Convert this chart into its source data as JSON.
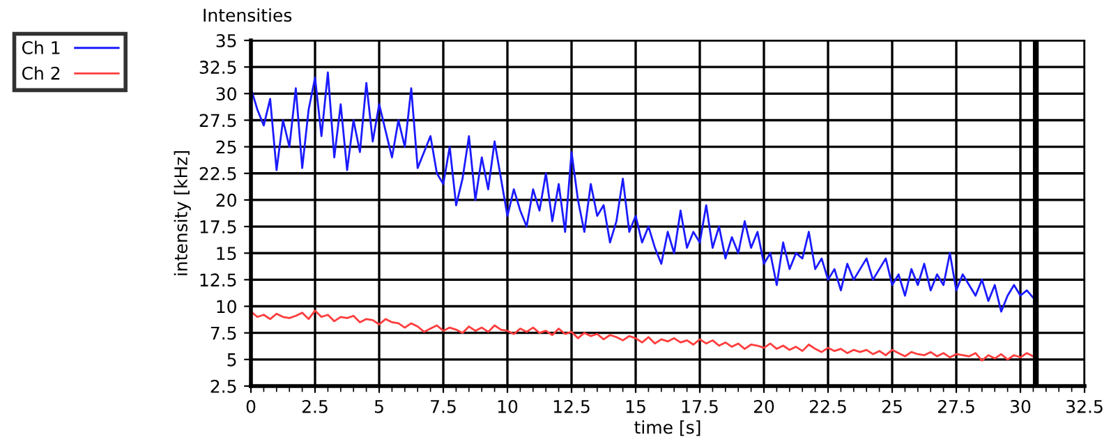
{
  "chart_data": {
    "type": "line",
    "title": "Intensities",
    "xlabel": "time [s]",
    "ylabel": "intensity [kHz]",
    "x": [
      0,
      0.25,
      0.5,
      0.75,
      1,
      1.25,
      1.5,
      1.75,
      2,
      2.25,
      2.5,
      2.75,
      3,
      3.25,
      3.5,
      3.75,
      4,
      4.25,
      4.5,
      4.75,
      5,
      5.25,
      5.5,
      5.75,
      6,
      6.25,
      6.5,
      6.75,
      7,
      7.25,
      7.5,
      7.75,
      8,
      8.25,
      8.5,
      8.75,
      9,
      9.25,
      9.5,
      9.75,
      10,
      10.25,
      10.5,
      10.75,
      11,
      11.25,
      11.5,
      11.75,
      12,
      12.25,
      12.5,
      12.75,
      13,
      13.25,
      13.5,
      13.75,
      14,
      14.25,
      14.5,
      14.75,
      15,
      15.25,
      15.5,
      15.75,
      16,
      16.25,
      16.5,
      16.75,
      17,
      17.25,
      17.5,
      17.75,
      18,
      18.25,
      18.5,
      18.75,
      19,
      19.25,
      19.5,
      19.75,
      20,
      20.25,
      20.5,
      20.75,
      21,
      21.25,
      21.5,
      21.75,
      22,
      22.25,
      22.5,
      22.75,
      23,
      23.25,
      23.5,
      23.75,
      24,
      24.25,
      24.5,
      24.75,
      25,
      25.25,
      25.5,
      25.75,
      26,
      26.25,
      26.5,
      26.75,
      27,
      27.25,
      27.5,
      27.75,
      28,
      28.25,
      28.5,
      28.75,
      29,
      29.25,
      29.5,
      29.75,
      30,
      30.25,
      30.5
    ],
    "series": [
      {
        "name": "Ch 1",
        "color": "#1a1aff",
        "values": [
          30.5,
          28.5,
          27,
          29.5,
          22.8,
          27.5,
          25,
          30.5,
          23,
          28.5,
          31.5,
          26,
          32,
          24,
          29,
          22.8,
          27.5,
          24.5,
          31,
          25.5,
          29,
          26.5,
          24,
          27.5,
          25,
          30.5,
          23,
          24.5,
          26,
          22.5,
          21.5,
          25,
          19.5,
          22,
          26,
          20,
          24,
          21,
          25.5,
          22,
          18.5,
          21,
          19,
          17.5,
          21,
          19,
          22.5,
          18,
          21.5,
          17,
          24.5,
          20,
          17,
          21.5,
          18.5,
          19.5,
          16,
          18,
          22,
          17,
          18.5,
          16,
          17.5,
          15.5,
          14,
          17,
          15,
          19,
          15.5,
          17,
          16,
          19.5,
          15.5,
          17.5,
          14.5,
          16.5,
          15,
          18,
          15.5,
          17,
          14,
          15,
          12,
          16,
          13.5,
          15,
          14.5,
          17,
          13.5,
          14.5,
          12.5,
          13.5,
          11.5,
          14,
          12.5,
          13.5,
          14.5,
          12.5,
          13.5,
          14.5,
          12,
          13,
          11,
          13.5,
          12,
          14,
          11.5,
          13,
          12,
          15,
          11.5,
          13,
          12,
          11,
          12.5,
          10.5,
          12,
          9.5,
          11,
          12,
          11,
          11.5,
          10.8
        ]
      },
      {
        "name": "Ch 2",
        "color": "#ff3c3c",
        "values": [
          9.5,
          9.0,
          9.2,
          8.8,
          9.3,
          9.0,
          8.9,
          9.1,
          9.4,
          8.8,
          9.6,
          9.0,
          9.2,
          8.6,
          9.0,
          8.9,
          9.1,
          8.5,
          8.8,
          8.7,
          8.3,
          8.8,
          8.5,
          8.4,
          8.0,
          8.4,
          8.1,
          7.6,
          7.9,
          8.2,
          7.7,
          8.0,
          7.8,
          7.5,
          8.1,
          7.7,
          8.0,
          7.6,
          8.2,
          7.8,
          7.7,
          7.4,
          7.9,
          7.6,
          8.0,
          7.5,
          7.7,
          7.3,
          7.9,
          7.4,
          7.6,
          7.0,
          7.5,
          7.2,
          7.4,
          6.9,
          7.3,
          7.1,
          6.8,
          7.2,
          7.0,
          6.6,
          7.1,
          6.5,
          6.9,
          6.7,
          7.0,
          6.6,
          6.8,
          6.4,
          6.9,
          6.5,
          6.8,
          6.3,
          6.6,
          6.2,
          6.5,
          6.0,
          6.4,
          6.3,
          6.1,
          6.5,
          6.0,
          6.3,
          5.9,
          6.2,
          5.8,
          6.4,
          6.0,
          5.7,
          6.1,
          5.8,
          6.0,
          5.6,
          5.9,
          5.7,
          5.9,
          5.5,
          5.8,
          5.4,
          5.9,
          5.6,
          5.3,
          5.7,
          5.5,
          5.4,
          5.7,
          5.3,
          5.6,
          5.2,
          5.5,
          5.4,
          5.3,
          5.6,
          4.9,
          5.4,
          5.1,
          5.5,
          5.0,
          5.4,
          5.2,
          5.6,
          5.3
        ]
      }
    ],
    "xlim": [
      0,
      32.5
    ],
    "xticks": [
      0,
      2.5,
      5,
      7.5,
      10,
      12.5,
      15,
      17.5,
      20,
      22.5,
      25,
      27.5,
      30,
      32.5
    ],
    "ylim": [
      2.5,
      35
    ],
    "yticks": [
      2.5,
      5,
      7.5,
      10,
      12.5,
      15,
      17.5,
      20,
      22.5,
      25,
      27.5,
      30,
      32.5,
      35
    ],
    "ref_lines": [
      {
        "axis": "x",
        "value": 30.6,
        "color": "#000000"
      }
    ],
    "grid": true,
    "legend": "top left",
    "marker": "none",
    "line_style": "solid"
  }
}
